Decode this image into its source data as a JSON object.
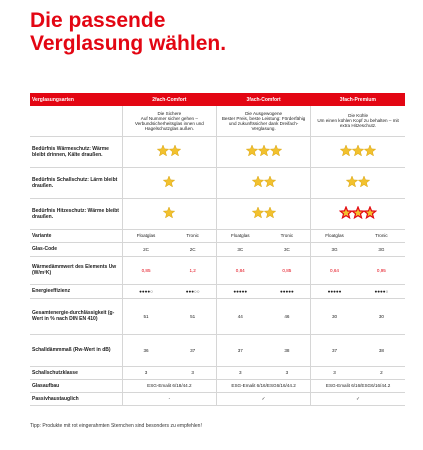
{
  "header": {
    "title_lines": [
      "Die passende",
      "Verglasung wählen."
    ]
  },
  "table": {
    "columns": [
      "Verglasungsarten",
      "2fach-Comfort",
      "3fach-Comfort",
      "3fach-Premium"
    ],
    "descriptions": [
      {
        "name": "Die Sichere",
        "text": "Auf Nummer sicher gehen – Verbundsicherheitsglas innen und Hagelschutzglas außen."
      },
      {
        "name": "Die Ausgewogene",
        "text": "Bester Preis, beste Leistung: Förderfähig und zukunftssicher dank Dreifach-Verglasung."
      },
      {
        "name": "Die Kühle",
        "text": "Um einen kühlen Kopf zu behalten – mit extra Hitzeschutz."
      }
    ],
    "need_rows": [
      {
        "label": "Bedürfnis Wärmeschutz: Wärme bleibt drinnen, Kälte draußen.",
        "stars": [
          2,
          3,
          3
        ],
        "recommended": [
          false,
          false,
          false
        ]
      },
      {
        "label": "Bedürfnis Schallschutz: Lärm bleibt draußen.",
        "stars": [
          1,
          2,
          2
        ],
        "recommended": [
          false,
          false,
          false
        ]
      },
      {
        "label": "Bedürfnis Hitzeschutz: Wärme bleibt draußen.",
        "stars": [
          1,
          2,
          3
        ],
        "recommended": [
          false,
          false,
          true
        ]
      }
    ],
    "spec_rows": [
      {
        "label": "Variante",
        "cells": [
          "Floatglas",
          "Tronic",
          "Floatglas",
          "Tronic",
          "Floatglas",
          "Tronic"
        ]
      },
      {
        "label": "Glas-Code",
        "cells": [
          "2C",
          "2C",
          "3C",
          "3C",
          "3G",
          "3G"
        ]
      },
      {
        "label": "Wärmedämmwert des Elements Uw (W/m²K)",
        "cells": [
          "0,85",
          "1,2",
          "0,84",
          "0,85",
          "0,64",
          "0,95"
        ],
        "color": "#e30613"
      },
      {
        "label": "Energieeffizienz",
        "cells": [
          "●●●●○",
          "●●●○○",
          "●●●●●",
          "●●●●●",
          "●●●●●",
          "●●●●○"
        ]
      },
      {
        "label": "Gesamtenergie-durchlässigkeit (g-Wert in % nach DIN EN 410)",
        "cells": [
          "51",
          "51",
          "44",
          "46",
          "30",
          "30"
        ]
      },
      {
        "label": "Schalldämmmaß (Rw-Wert in dB)",
        "cells": [
          "36",
          "37",
          "37",
          "38",
          "37",
          "38"
        ]
      },
      {
        "label": "Schallschutzklasse",
        "cells": [
          "3",
          "3",
          "3",
          "3",
          "3",
          "2"
        ]
      },
      {
        "label": "Glasaufbau",
        "cells": [
          "ESG-Emalit 6/18/44.2",
          "ESG-Emalit 6/16/ESG6/16/44.2",
          "ESG-Emalit 6/16/ESG6/16/44.2"
        ]
      },
      {
        "label": "Passivhaustauglich",
        "cells": [
          "-",
          "✓",
          "✓"
        ]
      }
    ]
  },
  "footnote": "Tipp: Produkte mit rot eingerahmten Sternchen sind besonders zu empfehlen!"
}
